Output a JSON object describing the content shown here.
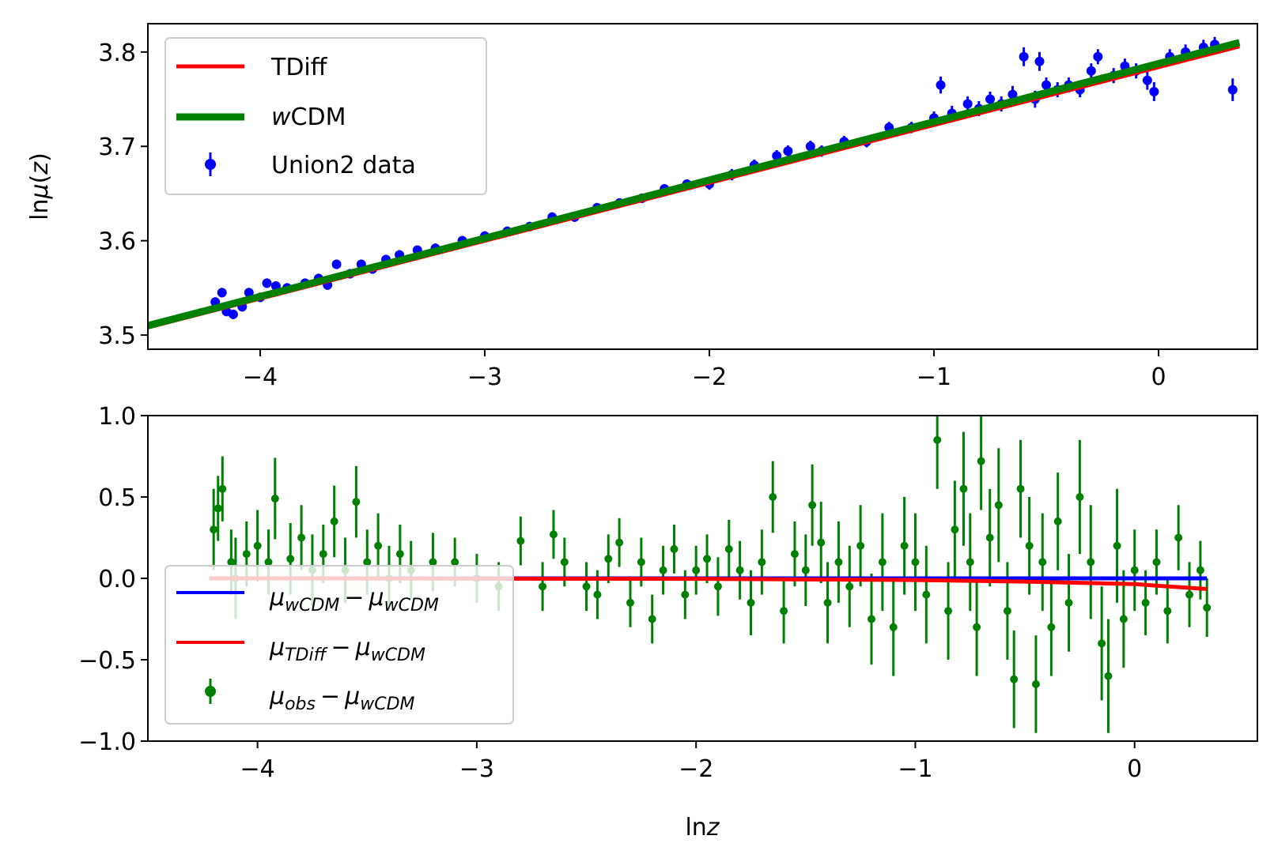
{
  "chart_data": [
    {
      "type": "scatter",
      "panel": "top",
      "xlim": [
        -4.5,
        0.44
      ],
      "ylim": [
        3.485,
        3.83
      ],
      "xticks": [
        -4,
        -3,
        -2,
        -1,
        0
      ],
      "xtick_labels": [
        "−4",
        "−3",
        "−2",
        "−1",
        "0"
      ],
      "yticks": [
        3.5,
        3.6,
        3.7,
        3.8
      ],
      "ytick_labels": [
        "3.5",
        "3.6",
        "3.7",
        "3.8"
      ],
      "xlabel": "",
      "ylabel": "lnμ(z)",
      "ylabel_parts": {
        "prefix": "ln",
        "mu": "μ",
        "open": "(",
        "var": "z",
        "close": ")"
      },
      "grid": false,
      "legend_position": "upper left",
      "legend": {
        "tdiff": "TDiff",
        "wcdm_w": "w",
        "wcdm_rest": "CDM",
        "data": "Union2 data"
      },
      "series": [
        {
          "name": "TDiff",
          "kind": "line",
          "color": "#ff0000",
          "x": [
            -4.5,
            0.36
          ],
          "y": [
            3.508,
            3.806
          ]
        },
        {
          "name": "wCDM",
          "kind": "line",
          "color": "#008000",
          "x": [
            -4.5,
            0.36
          ],
          "y": [
            3.51,
            3.81
          ]
        },
        {
          "name": "Union2 data",
          "kind": "errorbar",
          "color": "#0000ff",
          "points": [
            [
              -4.2,
              3.535,
              0.005
            ],
            [
              -4.17,
              3.545,
              0.005
            ],
            [
              -4.15,
              3.525,
              0.005
            ],
            [
              -4.12,
              3.522,
              0.005
            ],
            [
              -4.08,
              3.53,
              0.005
            ],
            [
              -4.05,
              3.545,
              0.005
            ],
            [
              -4.0,
              3.54,
              0.005
            ],
            [
              -3.97,
              3.555,
              0.005
            ],
            [
              -3.93,
              3.552,
              0.005
            ],
            [
              -3.88,
              3.55,
              0.005
            ],
            [
              -3.8,
              3.555,
              0.005
            ],
            [
              -3.74,
              3.56,
              0.005
            ],
            [
              -3.7,
              3.553,
              0.005
            ],
            [
              -3.66,
              3.575,
              0.005
            ],
            [
              -3.6,
              3.565,
              0.005
            ],
            [
              -3.55,
              3.575,
              0.005
            ],
            [
              -3.5,
              3.57,
              0.005
            ],
            [
              -3.44,
              3.58,
              0.005
            ],
            [
              -3.38,
              3.585,
              0.005
            ],
            [
              -3.3,
              3.59,
              0.005
            ],
            [
              -3.22,
              3.592,
              0.005
            ],
            [
              -3.1,
              3.6,
              0.005
            ],
            [
              -3.0,
              3.605,
              0.005
            ],
            [
              -2.9,
              3.61,
              0.005
            ],
            [
              -2.8,
              3.615,
              0.005
            ],
            [
              -2.7,
              3.625,
              0.005
            ],
            [
              -2.6,
              3.625,
              0.005
            ],
            [
              -2.5,
              3.635,
              0.005
            ],
            [
              -2.4,
              3.64,
              0.005
            ],
            [
              -2.3,
              3.645,
              0.005
            ],
            [
              -2.2,
              3.655,
              0.005
            ],
            [
              -2.1,
              3.66,
              0.005
            ],
            [
              -2.0,
              3.66,
              0.006
            ],
            [
              -1.9,
              3.67,
              0.006
            ],
            [
              -1.8,
              3.68,
              0.006
            ],
            [
              -1.7,
              3.69,
              0.006
            ],
            [
              -1.65,
              3.695,
              0.006
            ],
            [
              -1.55,
              3.7,
              0.006
            ],
            [
              -1.5,
              3.695,
              0.006
            ],
            [
              -1.4,
              3.705,
              0.006
            ],
            [
              -1.3,
              3.705,
              0.006
            ],
            [
              -1.2,
              3.72,
              0.006
            ],
            [
              -1.1,
              3.72,
              0.006
            ],
            [
              -1.0,
              3.73,
              0.007
            ],
            [
              -0.97,
              3.765,
              0.009
            ],
            [
              -0.92,
              3.735,
              0.008
            ],
            [
              -0.85,
              3.745,
              0.008
            ],
            [
              -0.8,
              3.74,
              0.008
            ],
            [
              -0.75,
              3.75,
              0.008
            ],
            [
              -0.7,
              3.745,
              0.008
            ],
            [
              -0.65,
              3.755,
              0.009
            ],
            [
              -0.6,
              3.795,
              0.01
            ],
            [
              -0.55,
              3.75,
              0.009
            ],
            [
              -0.53,
              3.79,
              0.01
            ],
            [
              -0.5,
              3.765,
              0.008
            ],
            [
              -0.45,
              3.76,
              0.008
            ],
            [
              -0.4,
              3.765,
              0.008
            ],
            [
              -0.35,
              3.76,
              0.008
            ],
            [
              -0.3,
              3.78,
              0.008
            ],
            [
              -0.27,
              3.795,
              0.008
            ],
            [
              -0.2,
              3.775,
              0.008
            ],
            [
              -0.15,
              3.785,
              0.008
            ],
            [
              -0.1,
              3.78,
              0.008
            ],
            [
              -0.05,
              3.77,
              0.01
            ],
            [
              -0.02,
              3.758,
              0.01
            ],
            [
              0.05,
              3.795,
              0.008
            ],
            [
              0.12,
              3.8,
              0.008
            ],
            [
              0.2,
              3.805,
              0.008
            ],
            [
              0.25,
              3.808,
              0.008
            ],
            [
              0.33,
              3.76,
              0.012
            ]
          ]
        }
      ]
    },
    {
      "type": "scatter",
      "panel": "bottom",
      "xlim": [
        -4.5,
        0.56
      ],
      "ylim": [
        -1.0,
        1.0
      ],
      "xticks": [
        -4,
        -3,
        -2,
        -1,
        0
      ],
      "xtick_labels": [
        "−4",
        "−3",
        "−2",
        "−1",
        "0"
      ],
      "yticks": [
        -1.0,
        -0.5,
        0.0,
        0.5,
        1.0
      ],
      "ytick_labels": [
        "−1.0",
        "−0.5",
        "0.0",
        "0.5",
        "1.0"
      ],
      "xlabel": "lnz",
      "xlabel_parts": {
        "prefix": "ln",
        "var": "z"
      },
      "ylabel": "",
      "grid": false,
      "legend_position": "lower left",
      "legend": {
        "wcdm": {
          "mu": "μ",
          "sub1": "wCDM",
          "minus": "−",
          "sub2": "wCDM"
        },
        "tdiff": {
          "mu": "μ",
          "sub1": "TDiff",
          "minus": "−",
          "sub2": "wCDM"
        },
        "obs": {
          "mu": "μ",
          "sub1": "obs",
          "minus": "−",
          "sub2": "wCDM"
        }
      },
      "series": [
        {
          "name": "μwCDM − μwCDM",
          "kind": "line",
          "color": "#0000ff",
          "x": [
            -4.22,
            0.33
          ],
          "y": [
            0.0,
            0.0
          ]
        },
        {
          "name": "μTDiff − μwCDM",
          "kind": "line",
          "color": "#ff0000",
          "x": [
            -4.22,
            -2.0,
            -1.0,
            -0.5,
            0.0,
            0.1,
            0.33
          ],
          "y": [
            0.0,
            -0.003,
            -0.01,
            -0.02,
            -0.035,
            -0.045,
            -0.065
          ]
        },
        {
          "name": "μobs − μwCDM",
          "kind": "errorbar",
          "color": "#008000",
          "points": [
            [
              -4.2,
              0.3,
              0.25
            ],
            [
              -4.18,
              0.43,
              0.2
            ],
            [
              -4.16,
              0.55,
              0.2
            ],
            [
              -4.12,
              0.1,
              0.2
            ],
            [
              -4.1,
              0.0,
              0.25
            ],
            [
              -4.05,
              0.15,
              0.2
            ],
            [
              -4.0,
              0.2,
              0.22
            ],
            [
              -3.95,
              0.1,
              0.2
            ],
            [
              -3.92,
              0.49,
              0.25
            ],
            [
              -3.85,
              0.12,
              0.22
            ],
            [
              -3.8,
              0.25,
              0.2
            ],
            [
              -3.75,
              0.05,
              0.22
            ],
            [
              -3.7,
              0.15,
              0.18
            ],
            [
              -3.65,
              0.35,
              0.22
            ],
            [
              -3.6,
              0.05,
              0.2
            ],
            [
              -3.55,
              0.47,
              0.22
            ],
            [
              -3.5,
              0.1,
              0.2
            ],
            [
              -3.45,
              0.2,
              0.2
            ],
            [
              -3.4,
              0.0,
              0.2
            ],
            [
              -3.35,
              0.15,
              0.18
            ],
            [
              -3.3,
              0.05,
              0.18
            ],
            [
              -3.2,
              0.1,
              0.18
            ],
            [
              -3.1,
              0.1,
              0.15
            ],
            [
              -3.0,
              0.0,
              0.15
            ],
            [
              -2.9,
              -0.05,
              0.15
            ],
            [
              -2.8,
              0.23,
              0.15
            ],
            [
              -2.7,
              -0.05,
              0.15
            ],
            [
              -2.65,
              0.27,
              0.15
            ],
            [
              -2.6,
              0.1,
              0.15
            ],
            [
              -2.5,
              -0.05,
              0.15
            ],
            [
              -2.45,
              -0.1,
              0.15
            ],
            [
              -2.4,
              0.12,
              0.15
            ],
            [
              -2.35,
              0.22,
              0.15
            ],
            [
              -2.3,
              -0.15,
              0.15
            ],
            [
              -2.25,
              0.1,
              0.15
            ],
            [
              -2.2,
              -0.25,
              0.15
            ],
            [
              -2.15,
              0.05,
              0.15
            ],
            [
              -2.1,
              0.18,
              0.15
            ],
            [
              -2.05,
              -0.1,
              0.15
            ],
            [
              -2.0,
              0.05,
              0.15
            ],
            [
              -1.95,
              0.12,
              0.15
            ],
            [
              -1.9,
              -0.05,
              0.18
            ],
            [
              -1.85,
              0.18,
              0.18
            ],
            [
              -1.8,
              0.05,
              0.18
            ],
            [
              -1.75,
              -0.15,
              0.2
            ],
            [
              -1.7,
              0.1,
              0.2
            ],
            [
              -1.65,
              0.5,
              0.22
            ],
            [
              -1.6,
              -0.2,
              0.2
            ],
            [
              -1.55,
              0.15,
              0.2
            ],
            [
              -1.5,
              0.05,
              0.22
            ],
            [
              -1.47,
              0.45,
              0.25
            ],
            [
              -1.43,
              0.22,
              0.25
            ],
            [
              -1.4,
              -0.15,
              0.25
            ],
            [
              -1.35,
              0.1,
              0.25
            ],
            [
              -1.3,
              -0.05,
              0.25
            ],
            [
              -1.25,
              0.2,
              0.25
            ],
            [
              -1.2,
              -0.25,
              0.28
            ],
            [
              -1.15,
              0.1,
              0.3
            ],
            [
              -1.1,
              -0.3,
              0.3
            ],
            [
              -1.05,
              0.2,
              0.3
            ],
            [
              -1.0,
              0.1,
              0.3
            ],
            [
              -0.95,
              -0.1,
              0.3
            ],
            [
              -0.9,
              0.85,
              0.3
            ],
            [
              -0.85,
              -0.2,
              0.3
            ],
            [
              -0.82,
              0.3,
              0.3
            ],
            [
              -0.78,
              0.55,
              0.35
            ],
            [
              -0.75,
              0.1,
              0.3
            ],
            [
              -0.72,
              -0.3,
              0.3
            ],
            [
              -0.7,
              0.72,
              0.3
            ],
            [
              -0.66,
              0.25,
              0.3
            ],
            [
              -0.62,
              0.45,
              0.35
            ],
            [
              -0.58,
              -0.2,
              0.3
            ],
            [
              -0.55,
              -0.62,
              0.3
            ],
            [
              -0.52,
              0.55,
              0.3
            ],
            [
              -0.48,
              0.2,
              0.3
            ],
            [
              -0.45,
              -0.65,
              0.3
            ],
            [
              -0.42,
              0.1,
              0.3
            ],
            [
              -0.38,
              -0.3,
              0.3
            ],
            [
              -0.35,
              0.35,
              0.3
            ],
            [
              -0.3,
              -0.15,
              0.3
            ],
            [
              -0.25,
              0.5,
              0.35
            ],
            [
              -0.2,
              0.1,
              0.35
            ],
            [
              -0.15,
              -0.4,
              0.35
            ],
            [
              -0.12,
              -0.6,
              0.35
            ],
            [
              -0.08,
              0.2,
              0.35
            ],
            [
              -0.05,
              -0.25,
              0.3
            ],
            [
              0.0,
              0.05,
              0.25
            ],
            [
              0.05,
              -0.15,
              0.2
            ],
            [
              0.1,
              0.1,
              0.2
            ],
            [
              0.15,
              -0.2,
              0.2
            ],
            [
              0.2,
              0.25,
              0.2
            ],
            [
              0.25,
              -0.1,
              0.2
            ],
            [
              0.3,
              0.05,
              0.18
            ],
            [
              0.33,
              -0.18,
              0.18
            ]
          ]
        }
      ]
    }
  ]
}
